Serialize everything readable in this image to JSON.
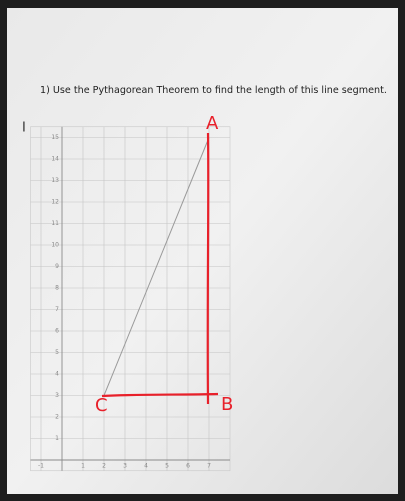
{
  "question": "1)  Use the Pythagorean Theorem to find the length of this line segment.",
  "handwriting": {
    "a": "A",
    "b": "B",
    "c": "C"
  },
  "chart_data": {
    "type": "line",
    "x": [
      2,
      7
    ],
    "values": [
      3,
      15
    ],
    "color": "#9a9a9a",
    "xlim": [
      -1.5,
      8
    ],
    "ylim": [
      -0.5,
      15.5
    ],
    "xticks": [
      -1,
      1,
      2,
      3,
      4,
      5,
      6,
      7
    ],
    "yticks": [
      1,
      2,
      3,
      4,
      5,
      6,
      7,
      8,
      9,
      10,
      11,
      12,
      13,
      14,
      15
    ],
    "grid": true
  }
}
